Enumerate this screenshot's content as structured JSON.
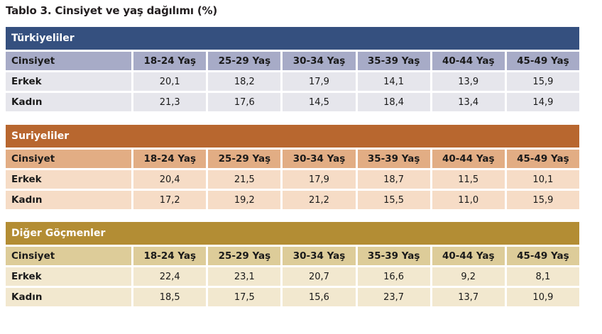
{
  "title": "Tablo 3. Cinsiyet ve yaş dağılımı (%)",
  "columns": [
    "Cinsiyet",
    "18-24 Yaş",
    "25-29 Yaş",
    "30-34 Yaş",
    "35-39 Yaş",
    "40-44 Yaş",
    "45-49 Yaş"
  ],
  "sections": [
    {
      "name": "Türkiyeliler",
      "color": "#35507f",
      "rows": [
        {
          "label": "Erkek",
          "values": [
            "20,1",
            "18,2",
            "17,9",
            "14,1",
            "13,9",
            "15,9"
          ]
        },
        {
          "label": "Kadın",
          "values": [
            "21,3",
            "17,6",
            "14,5",
            "18,4",
            "13,4",
            "14,9"
          ]
        }
      ]
    },
    {
      "name": "Suriyeliler",
      "color": "#b8672f",
      "rows": [
        {
          "label": "Erkek",
          "values": [
            "20,4",
            "21,5",
            "17,9",
            "18,7",
            "11,5",
            "10,1"
          ]
        },
        {
          "label": "Kadın",
          "values": [
            "17,2",
            "19,2",
            "21,2",
            "15,5",
            "11,0",
            "15,9"
          ]
        }
      ]
    },
    {
      "name": "Diğer Göçmenler",
      "color": "#b38d34",
      "rows": [
        {
          "label": "Erkek",
          "values": [
            "22,4",
            "23,1",
            "20,7",
            "16,6",
            "9,2",
            "8,1"
          ]
        },
        {
          "label": "Kadın",
          "values": [
            "18,5",
            "17,5",
            "15,6",
            "23,7",
            "13,7",
            "10,9"
          ]
        }
      ]
    }
  ]
}
